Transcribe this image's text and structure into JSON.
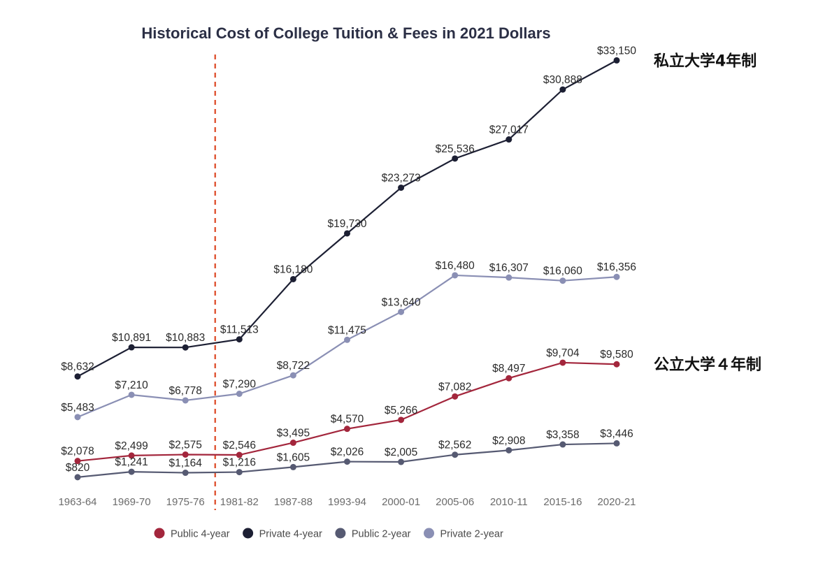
{
  "chart_data": {
    "type": "line",
    "title": "Historical Cost of College Tuition & Fees in 2021 Dollars",
    "categories": [
      "1963-64",
      "1969-70",
      "1975-76",
      "1981-82",
      "1987-88",
      "1993-94",
      "2000-01",
      "2005-06",
      "2010-11",
      "2015-16",
      "2020-21"
    ],
    "ylim": [
      0,
      35000
    ],
    "grid": false,
    "legend_position": "bottom",
    "series": [
      {
        "name": "Public 4-year",
        "color": "#a3263c",
        "values": [
          2078,
          2499,
          2575,
          2546,
          3495,
          4570,
          5266,
          7082,
          8497,
          9704,
          9580
        ],
        "labels": [
          "$2,078",
          "$2,499",
          "$2,575",
          "$2,546",
          "$3,495",
          "$4,570",
          "$5,266",
          "$7,082",
          "$8,497",
          "$9,704",
          "$9,580"
        ]
      },
      {
        "name": "Private 4-year",
        "color": "#1c1f33",
        "values": [
          8632,
          10891,
          10883,
          11513,
          16180,
          19730,
          23273,
          25536,
          27017,
          30888,
          33150
        ],
        "labels": [
          "$8,632",
          "$10,891",
          "$10,883",
          "$11,513",
          "$16,180",
          "$19,730",
          "$23,273",
          "$25,536",
          "$27,017",
          "$30,888",
          "$33,150"
        ]
      },
      {
        "name": "Public 2-year",
        "color": "#565a72",
        "values": [
          820,
          1241,
          1164,
          1216,
          1605,
          2026,
          2005,
          2562,
          2908,
          3358,
          3446
        ],
        "labels": [
          "$820",
          "$1,241",
          "$1,164",
          "$1,216",
          "$1,605",
          "$2,026",
          "$2,005",
          "$2,562",
          "$2,908",
          "$3,358",
          "$3,446"
        ]
      },
      {
        "name": "Private 2-year",
        "color": "#8a8fb4",
        "values": [
          5483,
          7210,
          6778,
          7290,
          8722,
          11475,
          13640,
          16480,
          16307,
          16060,
          16356
        ],
        "labels": [
          "$5,483",
          "$7,210",
          "$6,778",
          "$7,290",
          "$8,722",
          "$11,475",
          "$13,640",
          "$16,480",
          "$16,307",
          "$16,060",
          "$16,356"
        ]
      }
    ],
    "divider_after_category": "1975-76",
    "divider_color": "#e05a3a",
    "annotations": [
      {
        "text": "私立大学4年制",
        "series": "Private 4-year"
      },
      {
        "text": "公立大学４年制",
        "series": "Public 4-year"
      }
    ]
  }
}
